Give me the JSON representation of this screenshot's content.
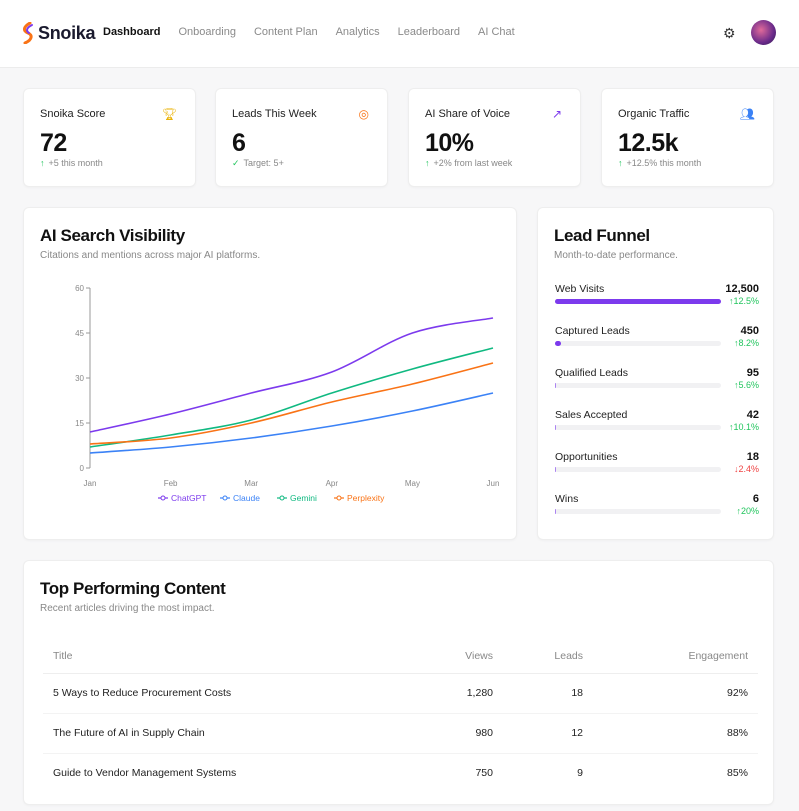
{
  "app": {
    "name": "Snoika"
  },
  "nav": {
    "items": [
      "Dashboard",
      "Onboarding",
      "Content Plan",
      "Analytics",
      "Leaderboard",
      "AI Chat"
    ],
    "active": "Dashboard"
  },
  "stats": [
    {
      "label": "Snoika Score",
      "value": "72",
      "sub": "+5 this month",
      "icon": "trophy-icon",
      "icon_color": "#eab308"
    },
    {
      "label": "Leads This Week",
      "value": "6",
      "sub": "Target: 5+",
      "icon": "target-icon",
      "icon_color": "#f97316"
    },
    {
      "label": "AI Share of Voice",
      "value": "10%",
      "sub": "+2% from last week",
      "icon": "trending-up-icon",
      "icon_color": "#7c3aed"
    },
    {
      "label": "Organic Traffic",
      "value": "12.5k",
      "sub": "+12.5% this month",
      "icon": "users-icon",
      "icon_color": "#3b82f6"
    }
  ],
  "visibility": {
    "title": "AI Search Visibility",
    "subtitle": "Citations and mentions across major AI platforms."
  },
  "chart_data": {
    "type": "line",
    "categories": [
      "Jan",
      "Feb",
      "Mar",
      "Apr",
      "May",
      "Jun"
    ],
    "ylim": [
      0,
      60
    ],
    "yticks": [
      0,
      15,
      30,
      45,
      60
    ],
    "grid": false,
    "legend": "bottom",
    "series": [
      {
        "name": "ChatGPT",
        "color": "#7c3aed",
        "values": [
          12,
          18,
          25,
          32,
          45,
          50
        ]
      },
      {
        "name": "Claude",
        "color": "#3b82f6",
        "values": [
          5,
          7,
          10,
          14,
          19,
          25
        ]
      },
      {
        "name": "Gemini",
        "color": "#10b981",
        "values": [
          7,
          11,
          16,
          25,
          33,
          40
        ]
      },
      {
        "name": "Perplexity",
        "color": "#f97316",
        "values": [
          8,
          10,
          15,
          22,
          28,
          35
        ]
      }
    ]
  },
  "funnel": {
    "title": "Lead Funnel",
    "subtitle": "Month-to-date performance.",
    "stages": [
      {
        "label": "Web Visits",
        "value": "12,500",
        "change": "12.5%",
        "dir": "up",
        "fraction": 1.0
      },
      {
        "label": "Captured Leads",
        "value": "450",
        "change": "8.2%",
        "dir": "up",
        "fraction": 0.036
      },
      {
        "label": "Qualified Leads",
        "value": "95",
        "change": "5.6%",
        "dir": "up",
        "fraction": 0.0076
      },
      {
        "label": "Sales Accepted",
        "value": "42",
        "change": "10.1%",
        "dir": "up",
        "fraction": 0.0034
      },
      {
        "label": "Opportunities",
        "value": "18",
        "change": "2.4%",
        "dir": "down",
        "fraction": 0.0014
      },
      {
        "label": "Wins",
        "value": "6",
        "change": "20%",
        "dir": "up",
        "fraction": 0.0005
      }
    ]
  },
  "content": {
    "title": "Top Performing Content",
    "subtitle": "Recent articles driving the most impact.",
    "columns": [
      "Title",
      "Views",
      "Leads",
      "Engagement"
    ],
    "rows": [
      [
        "5 Ways to Reduce Procurement Costs",
        "1,280",
        "18",
        "92%"
      ],
      [
        "The Future of AI in Supply Chain",
        "980",
        "12",
        "88%"
      ],
      [
        "Guide to Vendor Management Systems",
        "750",
        "9",
        "85%"
      ]
    ]
  }
}
